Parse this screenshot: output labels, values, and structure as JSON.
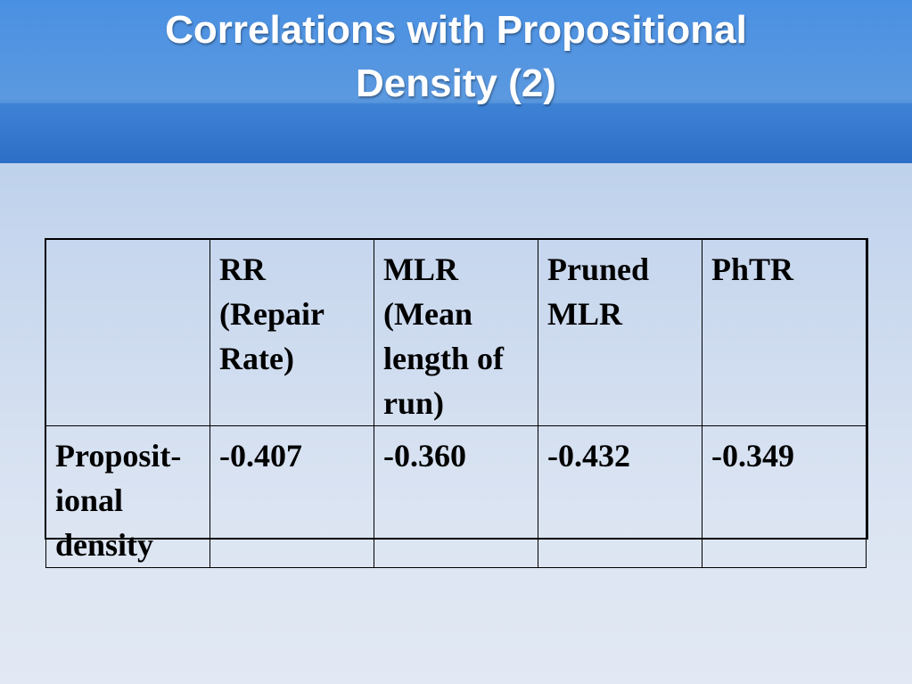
{
  "slide": {
    "title": "Correlations with Propositional\nDensity (2)"
  },
  "table": {
    "header": [
      "",
      "RR\n (Repair\n Rate)",
      "MLR\n (Mean\n length of\n run)",
      "Pruned\n MLR",
      "PhTR"
    ],
    "rows": [
      {
        "label": "Proposit-\n ional\n density",
        "values": [
          "-0.407",
          "-0.360",
          "-0.432",
          "-0.349"
        ]
      }
    ]
  },
  "colors": {
    "title_bar": "#4a90e2",
    "title_text": "#ffffff",
    "background": "#c9d8ee"
  }
}
